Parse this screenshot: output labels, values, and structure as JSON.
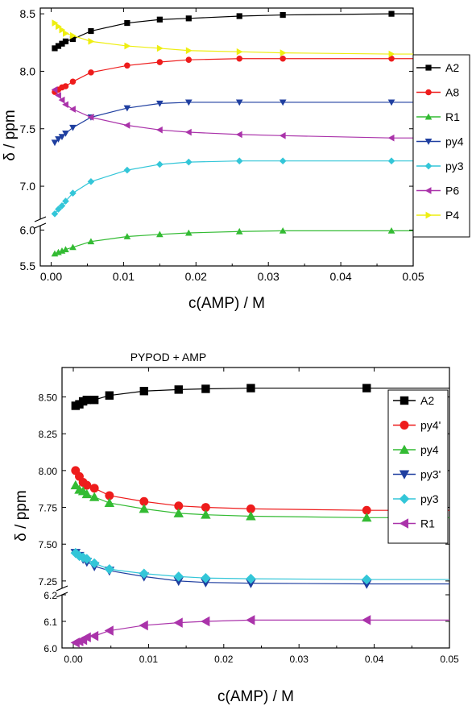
{
  "chart_data": [
    {
      "type": "line",
      "title": "",
      "xlabel": "c(AMP) / M",
      "ylabel": "δ / ppm",
      "xlim": [
        -0.0015,
        0.05
      ],
      "x_ticks": [
        "0.00",
        "0.01",
        "0.02",
        "0.03",
        "0.04",
        "0.05"
      ],
      "y_ticks": [
        "5.5",
        "6.0",
        "7.0",
        "7.5",
        "8.0",
        "8.5"
      ],
      "y_break": {
        "lower_range": [
          5.5,
          6.1
        ],
        "upper_range": [
          6.7,
          8.55
        ]
      },
      "grid": false,
      "legend_position": "right",
      "x": [
        0.0005,
        0.001,
        0.0015,
        0.002,
        0.003,
        0.0055,
        0.0105,
        0.015,
        0.019,
        0.026,
        0.032,
        0.047
      ],
      "series": [
        {
          "name": "A2",
          "color": "#000000",
          "marker": "square",
          "values": [
            8.2,
            8.22,
            8.24,
            8.26,
            8.28,
            8.35,
            8.42,
            8.45,
            8.46,
            8.48,
            8.49,
            8.5
          ]
        },
        {
          "name": "A8",
          "color": "#ee1c1c",
          "marker": "circle",
          "values": [
            7.82,
            7.84,
            7.86,
            7.87,
            7.91,
            7.99,
            8.05,
            8.08,
            8.1,
            8.11,
            8.11,
            8.11
          ]
        },
        {
          "name": "R1",
          "color": "#33bb33",
          "marker": "triangle-up",
          "values": [
            5.67,
            5.69,
            5.71,
            5.73,
            5.76,
            5.84,
            5.91,
            5.94,
            5.96,
            5.98,
            5.99,
            5.99
          ]
        },
        {
          "name": "py4",
          "color": "#1f3fa0",
          "marker": "triangle-down",
          "values": [
            7.38,
            7.41,
            7.43,
            7.46,
            7.51,
            7.6,
            7.68,
            7.72,
            7.73,
            7.73,
            7.73,
            7.73
          ]
        },
        {
          "name": "py3",
          "color": "#33c6d8",
          "marker": "diamond",
          "values": [
            6.76,
            6.8,
            6.83,
            6.87,
            6.94,
            7.04,
            7.14,
            7.19,
            7.21,
            7.22,
            7.22,
            7.22
          ]
        },
        {
          "name": "P6",
          "color": "#aa33aa",
          "marker": "triangle-left",
          "values": [
            7.84,
            7.79,
            7.75,
            7.71,
            7.67,
            7.6,
            7.53,
            7.49,
            7.47,
            7.45,
            7.44,
            7.42
          ]
        },
        {
          "name": "P4",
          "color": "#eeee11",
          "marker": "triangle-right",
          "values": [
            8.42,
            8.39,
            8.36,
            8.33,
            8.31,
            8.26,
            8.22,
            8.2,
            8.18,
            8.17,
            8.16,
            8.15
          ]
        }
      ]
    },
    {
      "type": "line",
      "title": "PYPOD + AMP",
      "xlabel": "c(AMP) / M",
      "ylabel": "δ / ppm",
      "xlim": [
        -0.0015,
        0.05
      ],
      "x_ticks": [
        "0.00",
        "0.01",
        "0.02",
        "0.03",
        "0.04",
        "0.05"
      ],
      "y_ticks": [
        "6.0",
        "6.1",
        "6.2",
        "7.25",
        "7.50",
        "7.75",
        "8.00",
        "8.25",
        "8.50"
      ],
      "y_break": {
        "lower_range": [
          6.0,
          6.2
        ],
        "upper_range": [
          7.2,
          8.7
        ]
      },
      "grid": false,
      "legend_position": "top-right",
      "x": [
        0.0003,
        0.0008,
        0.0013,
        0.0018,
        0.0028,
        0.0048,
        0.0094,
        0.014,
        0.0176,
        0.0236,
        0.039
      ],
      "series": [
        {
          "name": "A2",
          "color": "#000000",
          "marker": "square",
          "values": [
            8.44,
            8.45,
            8.47,
            8.48,
            8.48,
            8.51,
            8.54,
            8.55,
            8.555,
            8.56,
            8.56
          ]
        },
        {
          "name": "py4'",
          "color": "#ee1c1c",
          "marker": "circle",
          "values": [
            8.0,
            7.96,
            7.92,
            7.9,
            7.88,
            7.83,
            7.79,
            7.76,
            7.75,
            7.74,
            7.73
          ]
        },
        {
          "name": "py4",
          "color": "#33bb33",
          "marker": "triangle-up",
          "values": [
            7.9,
            7.87,
            7.86,
            7.84,
            7.82,
            7.78,
            7.74,
            7.71,
            7.7,
            7.69,
            7.68
          ]
        },
        {
          "name": "py3'",
          "color": "#1f3fa0",
          "marker": "triangle-down",
          "values": [
            7.44,
            7.42,
            7.4,
            7.38,
            7.35,
            7.32,
            7.28,
            7.25,
            7.24,
            7.235,
            7.23
          ]
        },
        {
          "name": "py3",
          "color": "#33c6d8",
          "marker": "diamond",
          "values": [
            7.44,
            7.42,
            7.41,
            7.4,
            7.37,
            7.33,
            7.3,
            7.28,
            7.27,
            7.265,
            7.26
          ]
        },
        {
          "name": "R1",
          "color": "#aa33aa",
          "marker": "triangle-left",
          "values": [
            6.02,
            6.025,
            6.03,
            6.04,
            6.045,
            6.065,
            6.085,
            6.095,
            6.1,
            6.105,
            6.105
          ]
        }
      ]
    }
  ]
}
